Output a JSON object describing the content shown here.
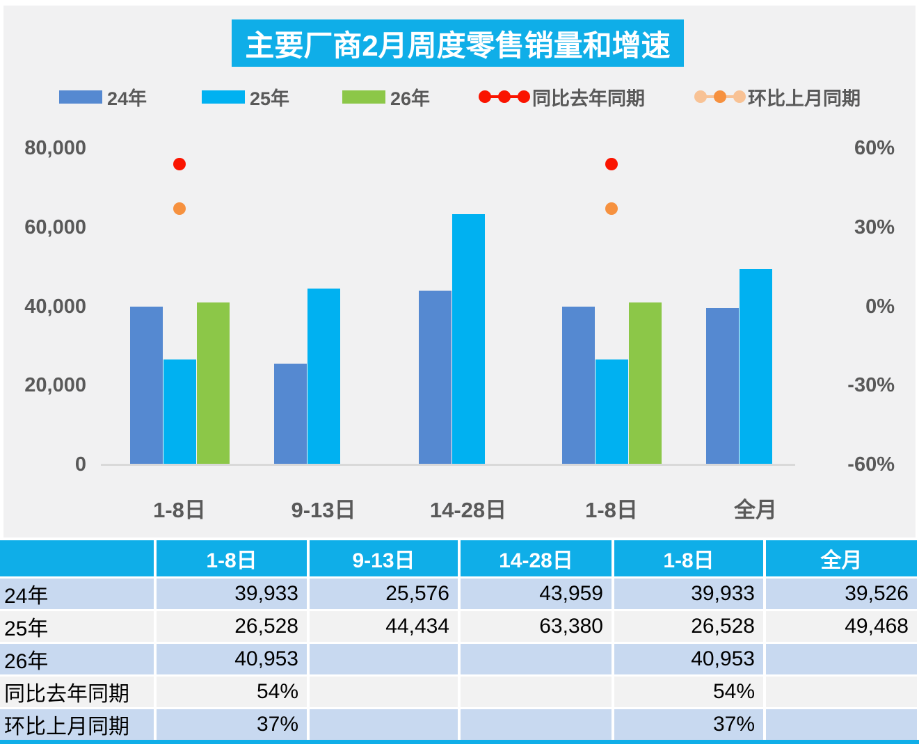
{
  "chart_data": {
    "type": "bar",
    "title": "主要厂商2月周度零售销量和增速",
    "categories": [
      "1-8日",
      "9-13日",
      "14-28日",
      "1-8日",
      "全月"
    ],
    "series": [
      {
        "name": "24年",
        "kind": "bar",
        "color": "#5589D1",
        "values": [
          39933,
          25576,
          43959,
          39933,
          39526
        ]
      },
      {
        "name": "25年",
        "kind": "bar",
        "color": "#00B1F1",
        "values": [
          26528,
          44434,
          63380,
          26528,
          49468
        ]
      },
      {
        "name": "26年",
        "kind": "bar",
        "color": "#8CC748",
        "values": [
          40953,
          null,
          null,
          40953,
          null
        ]
      },
      {
        "name": "同比去年同期",
        "kind": "dot",
        "color": "#FA1400",
        "line_color": "#FA1400",
        "values_pct": [
          54,
          null,
          null,
          54,
          null
        ]
      },
      {
        "name": "环比上月同期",
        "kind": "dot",
        "color": "#F6913F",
        "line_color": "#F8C295",
        "edge_dot_color": "#F8C295",
        "values_pct": [
          37,
          null,
          null,
          37,
          null
        ]
      }
    ],
    "left_axis": {
      "title": "",
      "min": 0,
      "max": 80000,
      "tick_labels": [
        "80,000",
        "60,000",
        "40,000",
        "20,000",
        "0"
      ],
      "tick_values": [
        80000,
        60000,
        40000,
        20000,
        0
      ]
    },
    "right_axis": {
      "title": "",
      "min": -60,
      "max": 60,
      "tick_labels": [
        "60%",
        "30%",
        "0%",
        "-30%",
        "-60%"
      ],
      "tick_values": [
        60,
        30,
        0,
        -30,
        -60
      ]
    },
    "legend_position": "top",
    "grid": false
  },
  "table": {
    "col_headers": [
      "",
      "1-8日",
      "9-13日",
      "14-28日",
      "1-8日",
      "全月"
    ],
    "rows": [
      {
        "label": "24年",
        "cells": [
          "39,933",
          "25,576",
          "43,959",
          "39,933",
          "39,526"
        ]
      },
      {
        "label": "25年",
        "cells": [
          "26,528",
          "44,434",
          "63,380",
          "26,528",
          "49,468"
        ]
      },
      {
        "label": "26年",
        "cells": [
          "40,953",
          "",
          "",
          "40,953",
          ""
        ]
      },
      {
        "label": "同比去年同期",
        "cells": [
          "54%",
          "",
          "",
          "54%",
          ""
        ]
      },
      {
        "label": "环比上月同期",
        "cells": [
          "37%",
          "",
          "",
          "37%",
          ""
        ]
      }
    ]
  },
  "colors": {
    "accent_cyan": "#0FAEE8",
    "panel_bg": "#F1F1F2",
    "axis_text": "#595959",
    "axis_line": "#D9D9D9",
    "row_blue": "#C8D9F0",
    "row_gray": "#F2F2F2",
    "header_text": "#FFFFFF",
    "cell_text": "#000000"
  }
}
